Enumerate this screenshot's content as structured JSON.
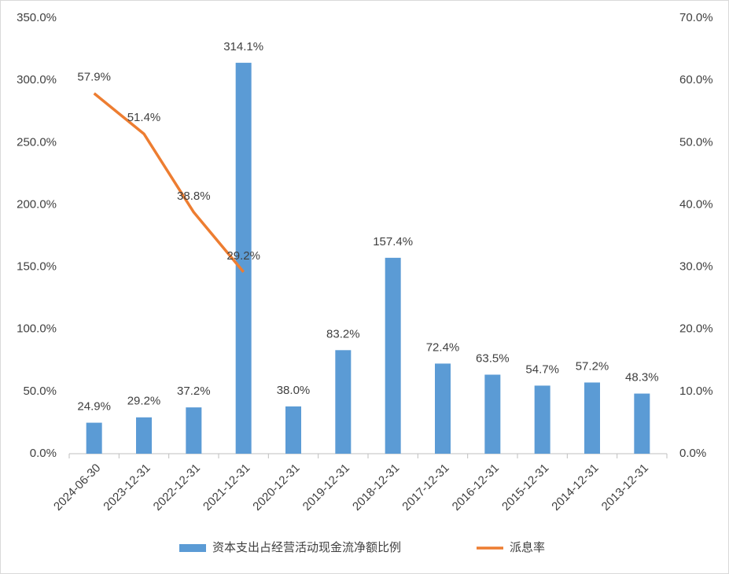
{
  "chart_data": {
    "type": "bar_line",
    "categories": [
      "2024-06-30",
      "2023-12-31",
      "2022-12-31",
      "2021-12-31",
      "2020-12-31",
      "2019-12-31",
      "2018-12-31",
      "2017-12-31",
      "2016-12-31",
      "2015-12-31",
      "2014-12-31",
      "2013-12-31"
    ],
    "series": [
      {
        "name": "资本支出占经营活动现金流净额比例",
        "type": "bar",
        "color": "#5b9bd5",
        "values": [
          24.9,
          29.2,
          37.2,
          314.1,
          38.0,
          83.2,
          157.4,
          72.4,
          63.5,
          54.7,
          57.2,
          48.3
        ],
        "value_labels": [
          "24.9%",
          "29.2%",
          "37.2%",
          "314.1%",
          "38.0%",
          "83.2%",
          "157.4%",
          "72.4%",
          "63.5%",
          "54.7%",
          "57.2%",
          "48.3%"
        ]
      },
      {
        "name": "派息率",
        "type": "line",
        "axis": "y2",
        "color": "#ed7d31",
        "values": [
          57.9,
          51.4,
          38.8,
          29.2,
          null,
          null,
          null,
          null,
          null,
          null,
          null,
          null
        ],
        "value_labels": [
          "57.9%",
          "51.4%",
          "38.8%",
          "29.2%",
          null,
          null,
          null,
          null,
          null,
          null,
          null,
          null
        ]
      }
    ],
    "ylim": [
      0,
      350
    ],
    "yticks": [
      {
        "value": 0,
        "label": "0.0%"
      },
      {
        "value": 50,
        "label": "50.0%"
      },
      {
        "value": 100,
        "label": "100.0%"
      },
      {
        "value": 150,
        "label": "150.0%"
      },
      {
        "value": 200,
        "label": "200.0%"
      },
      {
        "value": 250,
        "label": "250.0%"
      },
      {
        "value": 300,
        "label": "300.0%"
      },
      {
        "value": 350,
        "label": "350.0%"
      }
    ],
    "y2lim": [
      0,
      70
    ],
    "y2ticks": [
      {
        "value": 0,
        "label": "0.0%"
      },
      {
        "value": 10,
        "label": "10.0%"
      },
      {
        "value": 20,
        "label": "20.0%"
      },
      {
        "value": 30,
        "label": "30.0%"
      },
      {
        "value": 40,
        "label": "40.0%"
      },
      {
        "value": 50,
        "label": "50.0%"
      },
      {
        "value": 60,
        "label": "60.0%"
      },
      {
        "value": 70,
        "label": "70.0%"
      }
    ],
    "legend": "bottom"
  }
}
